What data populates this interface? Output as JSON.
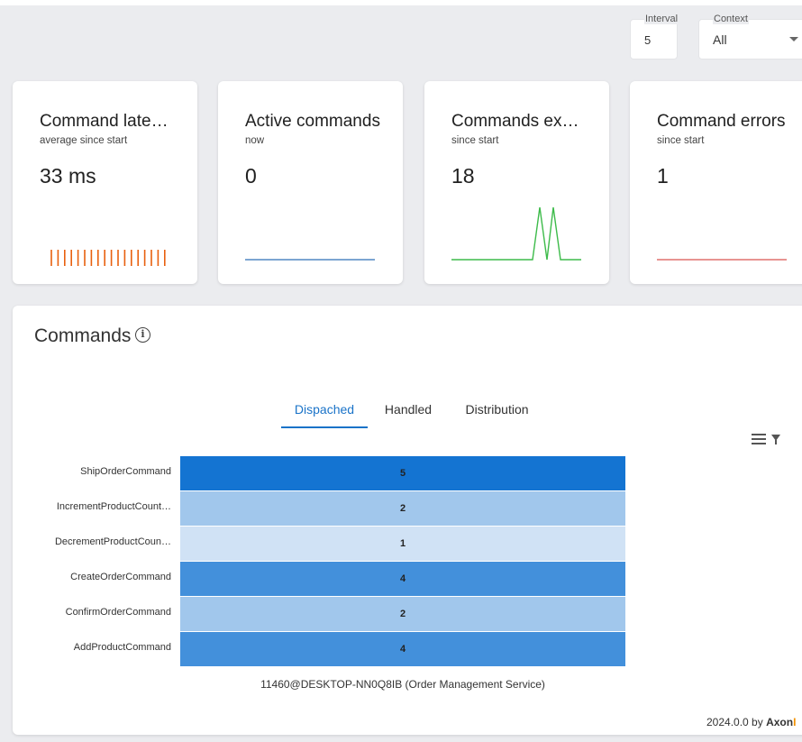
{
  "controls": {
    "interval": {
      "label": "Interval",
      "value": "5"
    },
    "context": {
      "label": "Context",
      "value": "All"
    }
  },
  "cards": {
    "latency": {
      "title": "Command latency",
      "subtitle": "average since start",
      "value": "33 ms",
      "color": "#e8600f"
    },
    "active": {
      "title": "Active commands",
      "subtitle": "now",
      "value": "0",
      "color": "#2d6fb8"
    },
    "executed": {
      "title": "Commands exec…",
      "subtitle": "since start",
      "value": "18",
      "color": "#3dbb4a"
    },
    "errors": {
      "title": "Command errors",
      "subtitle": "since start",
      "value": "1",
      "color": "#d9534f"
    }
  },
  "panel": {
    "title": "Commands",
    "info_glyph": "i",
    "tabs": [
      {
        "label": "Dispached",
        "active": true
      },
      {
        "label": "Handled",
        "active": false
      },
      {
        "label": "Distribution",
        "active": false
      }
    ]
  },
  "chart_data": {
    "type": "heatmap",
    "title": "Commands",
    "rows": [
      {
        "label": "ShipOrderCommand",
        "value": 5
      },
      {
        "label": "IncrementProductCount…",
        "value": 2
      },
      {
        "label": "DecrementProductCoun…",
        "value": 1
      },
      {
        "label": "CreateOrderCommand",
        "value": 4
      },
      {
        "label": "ConfirmOrderCommand",
        "value": 2
      },
      {
        "label": "AddProductCommand",
        "value": 4
      }
    ],
    "xlabel": "11460@DESKTOP-NN0Q8IB (Order Management Service)",
    "range": [
      1,
      5
    ],
    "colors": {
      "low": "#d0e2f5",
      "high": "#1474d2"
    }
  },
  "footer": {
    "version": "2024.0.0 by",
    "brand": "Axon",
    "brand_suffix": "I"
  }
}
